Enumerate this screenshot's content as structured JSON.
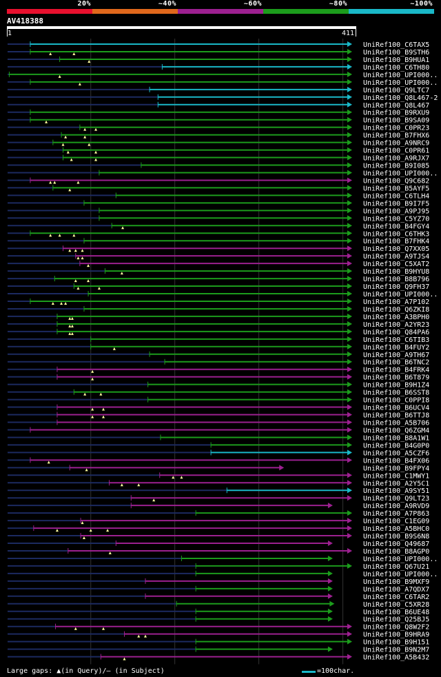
{
  "query": {
    "name": "AV418388",
    "start_label": "1",
    "end_label": "411",
    "length": 411
  },
  "legend": {
    "bands": [
      {
        "label": "20%",
        "color": "#e8102e"
      },
      {
        "label": "~40%",
        "color": "#e0681c"
      },
      {
        "label": "~60%",
        "color": "#9c2090"
      },
      {
        "label": "~80%",
        "color": "#1c9c1c"
      },
      {
        "label": "~100%",
        "color": "#1ab8c8"
      }
    ]
  },
  "colors": {
    "cyan": "#1ab8c8",
    "green": "#1c9c1c",
    "purple": "#9c2090",
    "gap": "#1c2a60",
    "marker": "#ffffa0",
    "grid": "#333333"
  },
  "footer": {
    "gap_text": "Large gaps: ▲(in Query)/– (in Subject)",
    "scale_text": "=100char."
  },
  "chart_data": {
    "type": "alignment-overview",
    "x_range": [
      1,
      411
    ],
    "hits": [
      {
        "name": "UniRef100_C6TAX5",
        "start": 28,
        "end": 411,
        "color": "cyan",
        "markers": []
      },
      {
        "name": "UniRef100_B9STH6",
        "start": 28,
        "end": 411,
        "color": "green",
        "markers": [
          52,
          80
        ]
      },
      {
        "name": "UniRef100_B9HUA1",
        "start": 63,
        "end": 411,
        "color": "green",
        "markers": [
          98
        ]
      },
      {
        "name": "UniRef100_C6TH80",
        "start": 185,
        "end": 411,
        "color": "cyan",
        "markers": []
      },
      {
        "name": "UniRef100_UPI000..",
        "start": 3,
        "end": 411,
        "color": "green",
        "markers": [
          63
        ]
      },
      {
        "name": "UniRef100_UPI000..",
        "start": 28,
        "end": 411,
        "color": "green",
        "markers": [
          87
        ]
      },
      {
        "name": "UniRef100_Q9LTC7",
        "start": 170,
        "end": 411,
        "color": "cyan",
        "markers": []
      },
      {
        "name": "UniRef100_Q8L467-2",
        "start": 180,
        "end": 411,
        "color": "cyan",
        "markers": []
      },
      {
        "name": "UniRef100_Q8L467",
        "start": 180,
        "end": 411,
        "color": "cyan",
        "markers": []
      },
      {
        "name": "UniRef100_B9RXU9",
        "start": 28,
        "end": 411,
        "color": "green",
        "markers": []
      },
      {
        "name": "UniRef100_B9SA09",
        "start": 28,
        "end": 411,
        "color": "green",
        "markers": [
          47
        ]
      },
      {
        "name": "UniRef100_C0PR23",
        "start": 87,
        "end": 411,
        "color": "green",
        "markers": [
          93,
          106
        ]
      },
      {
        "name": "UniRef100_B7FHX6",
        "start": 65,
        "end": 411,
        "color": "green",
        "markers": [
          70,
          93
        ]
      },
      {
        "name": "UniRef100_A9NRC9",
        "start": 55,
        "end": 411,
        "color": "green",
        "markers": [
          67,
          98
        ]
      },
      {
        "name": "UniRef100_C0PR61",
        "start": 67,
        "end": 411,
        "color": "green",
        "markers": [
          73,
          106
        ]
      },
      {
        "name": "UniRef100_A9RJX7",
        "start": 67,
        "end": 411,
        "color": "green",
        "markers": [
          77,
          106
        ]
      },
      {
        "name": "UniRef100_B9I085",
        "start": 160,
        "end": 411,
        "color": "green",
        "markers": []
      },
      {
        "name": "UniRef100_UPI000..",
        "start": 110,
        "end": 411,
        "color": "green",
        "markers": []
      },
      {
        "name": "UniRef100_Q9C682",
        "start": 28,
        "end": 411,
        "color": "purple",
        "markers": [
          52,
          57,
          85
        ]
      },
      {
        "name": "UniRef100_B5AYF5",
        "start": 55,
        "end": 411,
        "color": "green",
        "markers": [
          75
        ]
      },
      {
        "name": "UniRef100_C6TLH4",
        "start": 130,
        "end": 411,
        "color": "green",
        "markers": []
      },
      {
        "name": "UniRef100_B9I7F5",
        "start": 92,
        "end": 411,
        "color": "green",
        "markers": []
      },
      {
        "name": "UniRef100_A9PJ95",
        "start": 110,
        "end": 411,
        "color": "green",
        "markers": []
      },
      {
        "name": "UniRef100_C5YZ70",
        "start": 110,
        "end": 411,
        "color": "green",
        "markers": []
      },
      {
        "name": "UniRef100_B4FGY4",
        "start": 125,
        "end": 411,
        "color": "green",
        "markers": [
          138
        ]
      },
      {
        "name": "UniRef100_C6THK3",
        "start": 28,
        "end": 411,
        "color": "green",
        "markers": [
          52,
          63,
          80
        ]
      },
      {
        "name": "UniRef100_B7FHK4",
        "start": 92,
        "end": 411,
        "color": "green",
        "markers": []
      },
      {
        "name": "UniRef100_Q7XX05",
        "start": 67,
        "end": 411,
        "color": "purple",
        "markers": [
          75,
          82,
          90
        ]
      },
      {
        "name": "UniRef100_A9TJS4",
        "start": 82,
        "end": 411,
        "color": "purple",
        "markers": [
          85,
          90
        ]
      },
      {
        "name": "UniRef100_C5XAT2",
        "start": 87,
        "end": 411,
        "color": "purple",
        "markers": [
          97
        ]
      },
      {
        "name": "UniRef100_B9HYU8",
        "start": 117,
        "end": 411,
        "color": "green",
        "markers": [
          137
        ]
      },
      {
        "name": "UniRef100_B8B796",
        "start": 57,
        "end": 411,
        "color": "green",
        "markers": [
          82,
          97
        ]
      },
      {
        "name": "UniRef100_Q9FH37",
        "start": 80,
        "end": 411,
        "color": "green",
        "markers": [
          85,
          110
        ]
      },
      {
        "name": "UniRef100_UPI000..",
        "start": 97,
        "end": 411,
        "color": "green",
        "markers": []
      },
      {
        "name": "UniRef100_A7P102",
        "start": 28,
        "end": 411,
        "color": "green",
        "markers": [
          55,
          65,
          70
        ]
      },
      {
        "name": "UniRef100_Q6ZKI8",
        "start": 92,
        "end": 411,
        "color": "green",
        "markers": []
      },
      {
        "name": "UniRef100_A3BPH0",
        "start": 60,
        "end": 411,
        "color": "green",
        "markers": [
          75,
          78
        ]
      },
      {
        "name": "UniRef100_A2YR23",
        "start": 60,
        "end": 411,
        "color": "green",
        "markers": [
          75,
          78
        ]
      },
      {
        "name": "UniRef100_Q84PA6",
        "start": 60,
        "end": 411,
        "color": "green",
        "markers": [
          75,
          78
        ]
      },
      {
        "name": "UniRef100_C6TIB3",
        "start": 100,
        "end": 411,
        "color": "green",
        "markers": []
      },
      {
        "name": "UniRef100_B4FUY2",
        "start": 100,
        "end": 411,
        "color": "green",
        "markers": [
          128
        ]
      },
      {
        "name": "UniRef100_A9TH67",
        "start": 170,
        "end": 411,
        "color": "green",
        "markers": []
      },
      {
        "name": "UniRef100_B6TNC2",
        "start": 188,
        "end": 411,
        "color": "green",
        "markers": []
      },
      {
        "name": "UniRef100_B4FRK4",
        "start": 60,
        "end": 411,
        "color": "purple",
        "markers": [
          102
        ]
      },
      {
        "name": "UniRef100_B6T879",
        "start": 60,
        "end": 411,
        "color": "purple",
        "markers": [
          102
        ]
      },
      {
        "name": "UniRef100_B9H1Z4",
        "start": 168,
        "end": 411,
        "color": "green",
        "markers": []
      },
      {
        "name": "UniRef100_B6SST8",
        "start": 80,
        "end": 411,
        "color": "green",
        "markers": [
          93,
          112
        ]
      },
      {
        "name": "UniRef100_C0PPI8",
        "start": 168,
        "end": 411,
        "color": "green",
        "markers": []
      },
      {
        "name": "UniRef100_B6UCV4",
        "start": 60,
        "end": 411,
        "color": "purple",
        "markers": [
          102,
          115
        ]
      },
      {
        "name": "UniRef100_B6TTJ8",
        "start": 60,
        "end": 411,
        "color": "purple",
        "markers": [
          102,
          115
        ]
      },
      {
        "name": "UniRef100_A5B706",
        "start": 60,
        "end": 411,
        "color": "purple",
        "markers": []
      },
      {
        "name": "UniRef100_Q6ZGM4",
        "start": 28,
        "end": 411,
        "color": "purple",
        "markers": []
      },
      {
        "name": "UniRef100_B8A1W1",
        "start": 183,
        "end": 411,
        "color": "green",
        "markers": []
      },
      {
        "name": "UniRef100_B4G0P0",
        "start": 243,
        "end": 411,
        "color": "green",
        "markers": []
      },
      {
        "name": "UniRef100_A5CZF6",
        "start": 243,
        "end": 411,
        "color": "cyan",
        "markers": []
      },
      {
        "name": "UniRef100_B4FX06",
        "start": 28,
        "end": 411,
        "color": "purple",
        "markers": [
          50
        ]
      },
      {
        "name": "UniRef100_B9FPY4",
        "start": 75,
        "end": 330,
        "color": "purple",
        "markers": [
          95
        ]
      },
      {
        "name": "UniRef100_C1MWY1",
        "start": 182,
        "end": 411,
        "color": "purple",
        "markers": [
          198,
          208
        ]
      },
      {
        "name": "UniRef100_A2Y5C1",
        "start": 122,
        "end": 411,
        "color": "purple",
        "markers": [
          137,
          157
        ]
      },
      {
        "name": "UniRef100_A9SY51",
        "start": 262,
        "end": 411,
        "color": "cyan",
        "markers": []
      },
      {
        "name": "UniRef100_Q9LT23",
        "start": 148,
        "end": 411,
        "color": "purple",
        "markers": [
          175
        ]
      },
      {
        "name": "UniRef100_A9RVD9",
        "start": 148,
        "end": 388,
        "color": "purple",
        "markers": []
      },
      {
        "name": "UniRef100_A7P863",
        "start": 225,
        "end": 411,
        "color": "green",
        "markers": []
      },
      {
        "name": "UniRef100_C1EG09",
        "start": 88,
        "end": 411,
        "color": "purple",
        "markers": [
          90
        ]
      },
      {
        "name": "UniRef100_A5BHC0",
        "start": 32,
        "end": 411,
        "color": "purple",
        "markers": [
          60,
          100,
          120
        ]
      },
      {
        "name": "UniRef100_B9S6N8",
        "start": 88,
        "end": 411,
        "color": "purple",
        "markers": [
          92
        ]
      },
      {
        "name": "UniRef100_Q49687",
        "start": 130,
        "end": 388,
        "color": "purple",
        "markers": []
      },
      {
        "name": "UniRef100_B8AGP0",
        "start": 73,
        "end": 411,
        "color": "purple",
        "markers": [
          123
        ]
      },
      {
        "name": "UniRef100_UPI000..",
        "start": 208,
        "end": 388,
        "color": "green",
        "markers": []
      },
      {
        "name": "UniRef100_Q67U21",
        "start": 225,
        "end": 411,
        "color": "green",
        "markers": []
      },
      {
        "name": "UniRef100_UPI000..",
        "start": 225,
        "end": 388,
        "color": "green",
        "markers": []
      },
      {
        "name": "UniRef100_B9MXF9",
        "start": 165,
        "end": 388,
        "color": "purple",
        "markers": []
      },
      {
        "name": "UniRef100_A7QDX7",
        "start": 225,
        "end": 388,
        "color": "green",
        "markers": []
      },
      {
        "name": "UniRef100_C6TAR2",
        "start": 165,
        "end": 388,
        "color": "purple",
        "markers": []
      },
      {
        "name": "UniRef100_C5XR28",
        "start": 202,
        "end": 390,
        "color": "green",
        "markers": []
      },
      {
        "name": "UniRef100_B6UE48",
        "start": 225,
        "end": 388,
        "color": "green",
        "markers": []
      },
      {
        "name": "UniRef100_Q25BJ5",
        "start": 225,
        "end": 388,
        "color": "green",
        "markers": []
      },
      {
        "name": "UniRef100_Q8W2F2",
        "start": 58,
        "end": 411,
        "color": "purple",
        "markers": [
          82,
          115
        ]
      },
      {
        "name": "UniRef100_B9HRA9",
        "start": 140,
        "end": 411,
        "color": "purple",
        "markers": [
          157,
          165
        ]
      },
      {
        "name": "UniRef100_B9H151",
        "start": 225,
        "end": 411,
        "color": "green",
        "markers": []
      },
      {
        "name": "UniRef100_B9N2M7",
        "start": 225,
        "end": 388,
        "color": "green",
        "markers": []
      },
      {
        "name": "UniRef100_A5B432",
        "start": 112,
        "end": 411,
        "color": "purple",
        "markers": [
          140
        ]
      }
    ]
  }
}
